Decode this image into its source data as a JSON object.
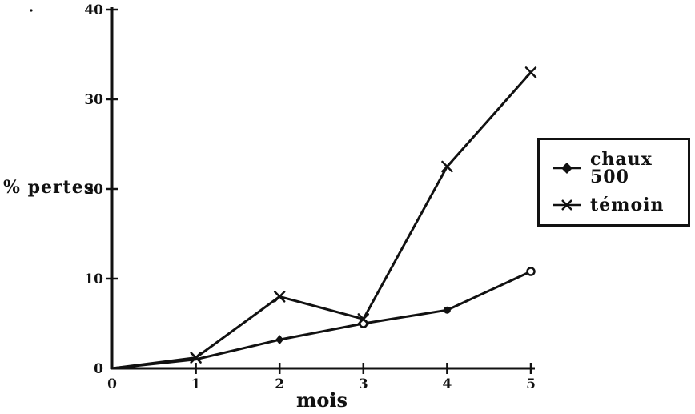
{
  "figure": {
    "background": "#ffffff",
    "ink_color": "#111111",
    "style": "scanned black-and-white line plot"
  },
  "chart_data": {
    "type": "line",
    "title": "",
    "xlabel": "mois",
    "ylabel": "% pertes",
    "x": [
      0,
      1,
      2,
      3,
      4,
      5
    ],
    "x_ticks": [
      0,
      1,
      2,
      3,
      4,
      5
    ],
    "y_ticks": [
      0,
      10,
      20,
      30,
      40
    ],
    "xlim": [
      0,
      5
    ],
    "ylim": [
      0,
      40
    ],
    "grid": false,
    "legend_position": "right",
    "series": [
      {
        "name": "chaux 500",
        "marker": "diamond",
        "x": [
          0,
          1,
          2,
          3,
          4,
          5
        ],
        "values": [
          0,
          1,
          3.2,
          5,
          6.5,
          10.8
        ],
        "point_markers": [
          "none",
          "none",
          "diamond",
          "circle-open",
          "circle-filled",
          "circle-open"
        ]
      },
      {
        "name": "témoin",
        "marker": "x",
        "x": [
          0,
          1,
          2,
          3,
          4,
          5
        ],
        "values": [
          0,
          1.2,
          8,
          5.5,
          22.5,
          33
        ],
        "point_markers": [
          "none",
          "x",
          "x",
          "x",
          "x",
          "x"
        ]
      }
    ]
  },
  "legend": {
    "items": [
      {
        "label": "chaux 500",
        "marker": "diamond"
      },
      {
        "label": "témoin",
        "marker": "x"
      }
    ]
  }
}
